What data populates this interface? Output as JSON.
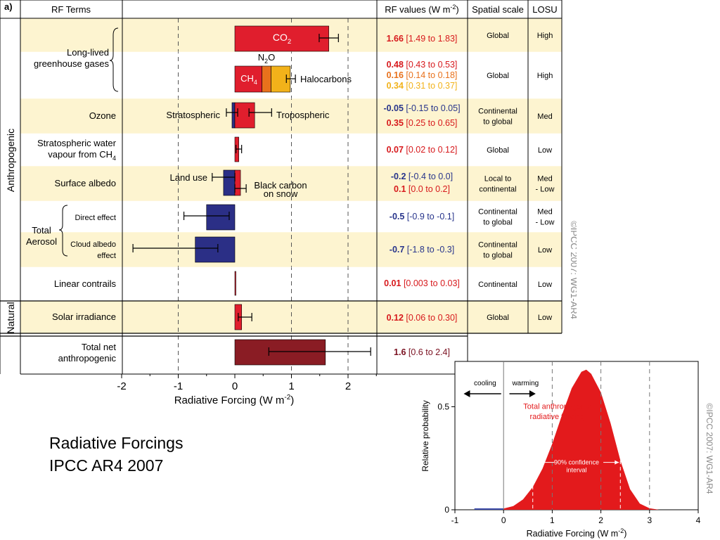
{
  "figure_a": {
    "panel_label": "a)",
    "headers": {
      "terms": "RF Terms",
      "values_prefix": "RF values (W m",
      "values_sup": "-2",
      "values_suffix": ")",
      "spatial": "Spatial scale",
      "losu": "LOSU"
    },
    "group_labels": {
      "anthropogenic": "Anthropogenic",
      "natural": "Natural"
    },
    "xaxis": {
      "label_prefix": "Radiative Forcing  (W m",
      "label_sup": "-2",
      "label_suffix": ")",
      "ticks": [
        "-2",
        "-1",
        "0",
        "1",
        "2"
      ]
    },
    "watermark": "©IPCC  2007: WG1-AR4",
    "rows": [
      {
        "term_lines": [
          "Long-lived",
          "greenhouse gases"
        ],
        "spatial": [
          "Global"
        ],
        "losu": [
          "High"
        ]
      },
      {
        "term_lines": [],
        "spatial": [
          "Global"
        ],
        "losu": [
          "High"
        ]
      },
      {
        "term_lines": [
          "Ozone"
        ],
        "spatial": [
          "Continental",
          "to global"
        ],
        "losu": [
          "Med"
        ]
      },
      {
        "term_lines": [
          "Stratospheric water",
          "vapour from CH4"
        ],
        "spatial": [
          "Global"
        ],
        "losu": [
          "Low"
        ]
      },
      {
        "term_lines": [
          "Surface albedo"
        ],
        "spatial": [
          "Local to",
          "continental"
        ],
        "losu": [
          "Med",
          "- Low"
        ]
      },
      {
        "term_lines": [
          "Direct effect"
        ],
        "spatial": [
          "Continental",
          "to global"
        ],
        "losu": [
          "Med",
          "- Low"
        ]
      },
      {
        "term_lines": [
          "Cloud albedo",
          "effect"
        ],
        "spatial": [
          "Continental",
          "to global"
        ],
        "losu": [
          "Low"
        ]
      },
      {
        "term_lines": [
          "Linear contrails"
        ],
        "spatial": [
          "Continental"
        ],
        "losu": [
          "Low"
        ]
      },
      {
        "term_lines": [
          "Solar irradiance"
        ],
        "spatial": [
          "Global"
        ],
        "losu": [
          "Low"
        ]
      },
      {
        "term_lines": [
          "Total net",
          "anthropogenic"
        ],
        "spatial": [],
        "losu": []
      }
    ],
    "aerosol_label": [
      "Total",
      "Aerosol"
    ],
    "bar_labels": {
      "co2": "CO2",
      "n2o": "N2O",
      "ch4": "CH4",
      "halocarbons": "Halocarbons",
      "stratospheric": "Stratospheric",
      "tropospheric": "Tropospheric",
      "land_use": "Land use",
      "black_carbon": [
        "Black carbon",
        "on snow"
      ]
    },
    "rf_values": [
      {
        "bold": "1.66",
        "range": "[1.49 to 1.83]",
        "color": "#d7191c"
      },
      {
        "bold": "0.48",
        "range": "[0.43 to 0.53]",
        "color": "#d7191c"
      },
      {
        "bold": "0.16",
        "range": "[0.14 to 0.18]",
        "color": "#e8711c"
      },
      {
        "bold": "0.34",
        "range": "[0.31 to 0.37]",
        "color": "#f2b21a"
      },
      {
        "bold": "-0.05",
        "range": "[-0.15 to 0.05]",
        "color": "#27348b"
      },
      {
        "bold": "0.35",
        "range": "[0.25 to 0.65]",
        "color": "#d7191c"
      },
      {
        "bold": "0.07",
        "range": "[0.02 to 0.12]",
        "color": "#d7191c"
      },
      {
        "bold": "-0.2",
        "range": "[-0.4 to 0.0]",
        "color": "#27348b"
      },
      {
        "bold": "0.1",
        "range": "[0.0 to 0.2]",
        "color": "#d7191c"
      },
      {
        "bold": "-0.5",
        "range": "[-0.9 to -0.1]",
        "color": "#27348b"
      },
      {
        "bold": "-0.7",
        "range": "[-1.8 to -0.3]",
        "color": "#27348b"
      },
      {
        "bold": "0.01",
        "range": "[0.003 to 0.03]",
        "color": "#d7191c"
      },
      {
        "bold": "0.12",
        "range": "[0.06 to 0.30]",
        "color": "#d7191c"
      },
      {
        "bold": "1.6",
        "range": "[0.6 to 2.4]",
        "color": "#7a1020"
      }
    ]
  },
  "figure_b": {
    "ylabel": "Relative probability",
    "xlabel_prefix": "Radiative Forcing  (W m",
    "xlabel_sup": "-2",
    "xlabel_suffix": ")",
    "cooling": "cooling",
    "warming": "warming",
    "curve_label": [
      "Total anthropogenic",
      "radiative forcing"
    ],
    "ci_label": [
      "90% confidence",
      "interval"
    ],
    "x_ticks": [
      "-1",
      "0",
      "1",
      "2",
      "3",
      "4"
    ],
    "y_ticks": [
      "0",
      "0.5"
    ],
    "watermark": "©IPCC  2007: WG1-AR4"
  },
  "caption": {
    "line1": "Radiative Forcings",
    "line2": "IPCC AR4 2007"
  },
  "chart_data": [
    {
      "type": "bar",
      "orientation": "horizontal",
      "xlabel": "Radiative Forcing (W m-2)",
      "xlim": [
        -2,
        2.6
      ],
      "x_ticks": [
        -2,
        -1,
        0,
        1,
        2
      ],
      "grid": "dashed vertical at -1, 1, 2",
      "colors": {
        "positive": "#e01e2d",
        "negative": "#2b2f86",
        "n2o": "#e8711c",
        "halocarbons": "#f2b21a",
        "total": "#8a1c24"
      },
      "bars": [
        {
          "name": "CO2",
          "start": 0,
          "value": 1.66,
          "low": 1.49,
          "high": 1.83
        },
        {
          "name": "CH4",
          "start": 0,
          "value": 0.48,
          "low": 0.43,
          "high": 0.53
        },
        {
          "name": "N2O",
          "start": 0.48,
          "value": 0.16,
          "low": 0.14,
          "high": 0.18
        },
        {
          "name": "Halocarbons",
          "start": 0.64,
          "value": 0.34,
          "low": 0.31,
          "high": 0.37,
          "stack_low": 0.91,
          "stack_high": 1.07
        },
        {
          "name": "Stratospheric ozone",
          "start": 0,
          "value": -0.05,
          "low": -0.15,
          "high": 0.05
        },
        {
          "name": "Tropospheric ozone",
          "start": 0,
          "value": 0.35,
          "low": 0.25,
          "high": 0.65
        },
        {
          "name": "Stratospheric water vapour from CH4",
          "start": 0,
          "value": 0.07,
          "low": 0.02,
          "high": 0.12
        },
        {
          "name": "Land use",
          "start": 0,
          "value": -0.2,
          "low": -0.4,
          "high": 0.0
        },
        {
          "name": "Black carbon on snow",
          "start": 0,
          "value": 0.1,
          "low": 0.0,
          "high": 0.2
        },
        {
          "name": "Aerosol direct effect",
          "start": 0,
          "value": -0.5,
          "low": -0.9,
          "high": -0.1
        },
        {
          "name": "Aerosol cloud albedo effect",
          "start": 0,
          "value": -0.7,
          "low": -1.8,
          "high": -0.3
        },
        {
          "name": "Linear contrails",
          "start": 0,
          "value": 0.01,
          "low": 0.003,
          "high": 0.03
        },
        {
          "name": "Solar irradiance",
          "start": 0,
          "value": 0.12,
          "low": 0.06,
          "high": 0.3
        },
        {
          "name": "Total net anthropogenic",
          "start": 0,
          "value": 1.6,
          "low": 0.6,
          "high": 2.4
        }
      ]
    },
    {
      "type": "area",
      "xlabel": "Radiative Forcing (W m-2)",
      "ylabel": "Relative probability",
      "xlim": [
        -1,
        4
      ],
      "ylim": [
        0,
        0.72
      ],
      "x_ticks": [
        -1,
        0,
        1,
        2,
        3,
        4
      ],
      "y_ticks": [
        0,
        0.5
      ],
      "dashed_verticals": [
        1,
        2,
        3
      ],
      "x": [
        -0.6,
        -0.4,
        -0.2,
        0.0,
        0.2,
        0.4,
        0.6,
        0.8,
        1.0,
        1.2,
        1.4,
        1.6,
        1.7,
        1.8,
        2.0,
        2.2,
        2.4,
        2.6,
        2.8,
        3.0,
        3.2
      ],
      "y": [
        0.0,
        0.0,
        0.002,
        0.006,
        0.018,
        0.05,
        0.11,
        0.2,
        0.32,
        0.46,
        0.59,
        0.67,
        0.68,
        0.66,
        0.57,
        0.42,
        0.24,
        0.1,
        0.03,
        0.007,
        0.0
      ],
      "confidence_interval_90": [
        0.6,
        2.4
      ],
      "fill_color": "#e31a1c"
    }
  ]
}
